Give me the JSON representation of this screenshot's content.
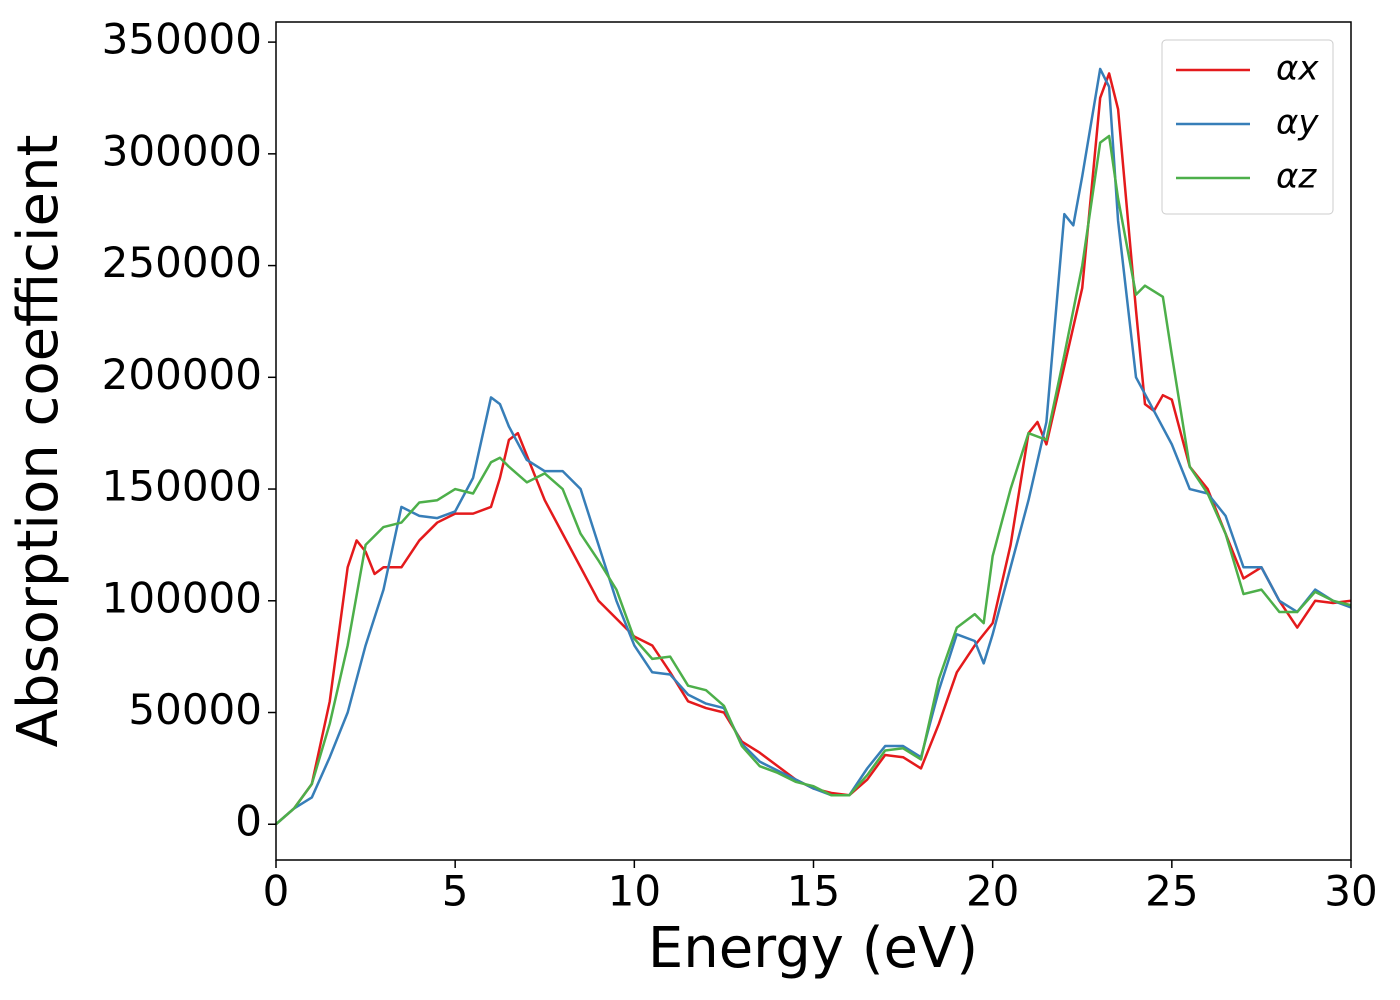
{
  "chart_data": {
    "type": "line",
    "xlabel": "Energy (eV)",
    "ylabel": "Absorption coefficient",
    "xlim": [
      0,
      30
    ],
    "xticks": [
      0,
      5,
      10,
      15,
      20,
      25,
      30
    ],
    "ylim": [
      -16000,
      359000
    ],
    "yticks": [
      0,
      50000,
      100000,
      150000,
      200000,
      250000,
      300000,
      350000
    ],
    "grid": false,
    "legend": "upper right",
    "series": [
      {
        "name": "αx",
        "color": "#e41a1c",
        "x": [
          0,
          0.5,
          1,
          1.5,
          2,
          2.25,
          2.5,
          2.75,
          3,
          3.5,
          4,
          4.5,
          5,
          5.5,
          6,
          6.25,
          6.5,
          6.75,
          7,
          7.5,
          8,
          8.5,
          9,
          9.5,
          10,
          10.5,
          11,
          11.5,
          12,
          12.5,
          13,
          13.5,
          14,
          14.5,
          15,
          15.5,
          16,
          16.5,
          17,
          17.5,
          18,
          18.5,
          19,
          19.5,
          20,
          20.5,
          21,
          21.25,
          21.5,
          22,
          22.5,
          23,
          23.25,
          23.5,
          24,
          24.25,
          24.5,
          24.75,
          25,
          25.5,
          26,
          26.5,
          27,
          27.5,
          28,
          28.5,
          29,
          29.5,
          30
        ],
        "values": [
          0,
          7000,
          18000,
          55000,
          115000,
          127000,
          122000,
          112000,
          115000,
          115000,
          127000,
          135000,
          139000,
          139000,
          142000,
          155000,
          172000,
          175000,
          165000,
          145000,
          130000,
          115000,
          100000,
          92000,
          84000,
          80000,
          68000,
          55000,
          52000,
          50000,
          37000,
          32000,
          26000,
          20000,
          16000,
          14000,
          13000,
          20000,
          31000,
          30000,
          25000,
          45000,
          68000,
          80000,
          90000,
          125000,
          175000,
          180000,
          170000,
          205000,
          240000,
          325000,
          336000,
          320000,
          230000,
          188000,
          185000,
          192000,
          190000,
          160000,
          150000,
          130000,
          110000,
          115000,
          100000,
          88000,
          100000,
          99000,
          100000
        ]
      },
      {
        "name": "αy",
        "color": "#377eb8",
        "x": [
          0,
          0.5,
          1,
          1.5,
          2,
          2.5,
          3,
          3.5,
          4,
          4.5,
          5,
          5.5,
          6,
          6.25,
          6.5,
          7,
          7.5,
          8,
          8.5,
          9,
          9.5,
          10,
          10.5,
          11,
          11.5,
          12,
          12.5,
          13,
          13.5,
          14,
          14.5,
          15,
          15.5,
          16,
          16.5,
          17,
          17.5,
          18,
          18.5,
          19,
          19.5,
          19.75,
          20,
          20.5,
          21,
          21.5,
          22,
          22.25,
          22.5,
          23,
          23.25,
          23.5,
          24,
          24.5,
          25,
          25.5,
          26,
          26.5,
          27,
          27.5,
          28,
          28.5,
          29,
          29.5,
          30
        ],
        "values": [
          0,
          7000,
          12000,
          30000,
          50000,
          80000,
          105000,
          142000,
          138000,
          137000,
          140000,
          155000,
          191000,
          188000,
          178000,
          163000,
          158000,
          158000,
          150000,
          125000,
          100000,
          80000,
          68000,
          67000,
          58000,
          54000,
          52000,
          36000,
          28000,
          24000,
          20000,
          16000,
          13000,
          13000,
          25000,
          35000,
          35000,
          30000,
          60000,
          85000,
          82000,
          72000,
          85000,
          115000,
          145000,
          180000,
          273000,
          268000,
          290000,
          338000,
          330000,
          270000,
          200000,
          185000,
          170000,
          150000,
          148000,
          138000,
          115000,
          115000,
          100000,
          95000,
          105000,
          100000,
          97000
        ]
      },
      {
        "name": "αz",
        "color": "#4daf4a",
        "x": [
          0,
          0.5,
          1,
          1.5,
          2,
          2.5,
          3,
          3.5,
          4,
          4.5,
          5,
          5.5,
          6,
          6.25,
          6.5,
          7,
          7.5,
          8,
          8.5,
          9,
          9.5,
          10,
          10.5,
          11,
          11.5,
          12,
          12.5,
          13,
          13.5,
          14,
          14.5,
          15,
          15.5,
          16,
          16.5,
          17,
          17.5,
          18,
          18.5,
          19,
          19.5,
          19.75,
          20,
          20.5,
          21,
          21.5,
          22,
          22.5,
          23,
          23.25,
          23.5,
          24,
          24.25,
          24.75,
          25,
          25.5,
          26,
          26.5,
          27,
          27.5,
          28,
          28.5,
          29,
          29.5,
          30
        ],
        "values": [
          0,
          7000,
          18000,
          45000,
          80000,
          125000,
          133000,
          135000,
          144000,
          145000,
          150000,
          148000,
          162000,
          164000,
          160000,
          153000,
          157000,
          150000,
          130000,
          118000,
          105000,
          83000,
          74000,
          75000,
          62000,
          60000,
          53000,
          35000,
          26000,
          23000,
          19000,
          17000,
          13000,
          13000,
          22000,
          33000,
          34000,
          29000,
          65000,
          88000,
          94000,
          90000,
          120000,
          150000,
          175000,
          172000,
          210000,
          250000,
          305000,
          308000,
          280000,
          237000,
          241000,
          236000,
          210000,
          160000,
          148000,
          130000,
          103000,
          105000,
          95000,
          95000,
          104000,
          100000,
          98000
        ]
      }
    ]
  }
}
